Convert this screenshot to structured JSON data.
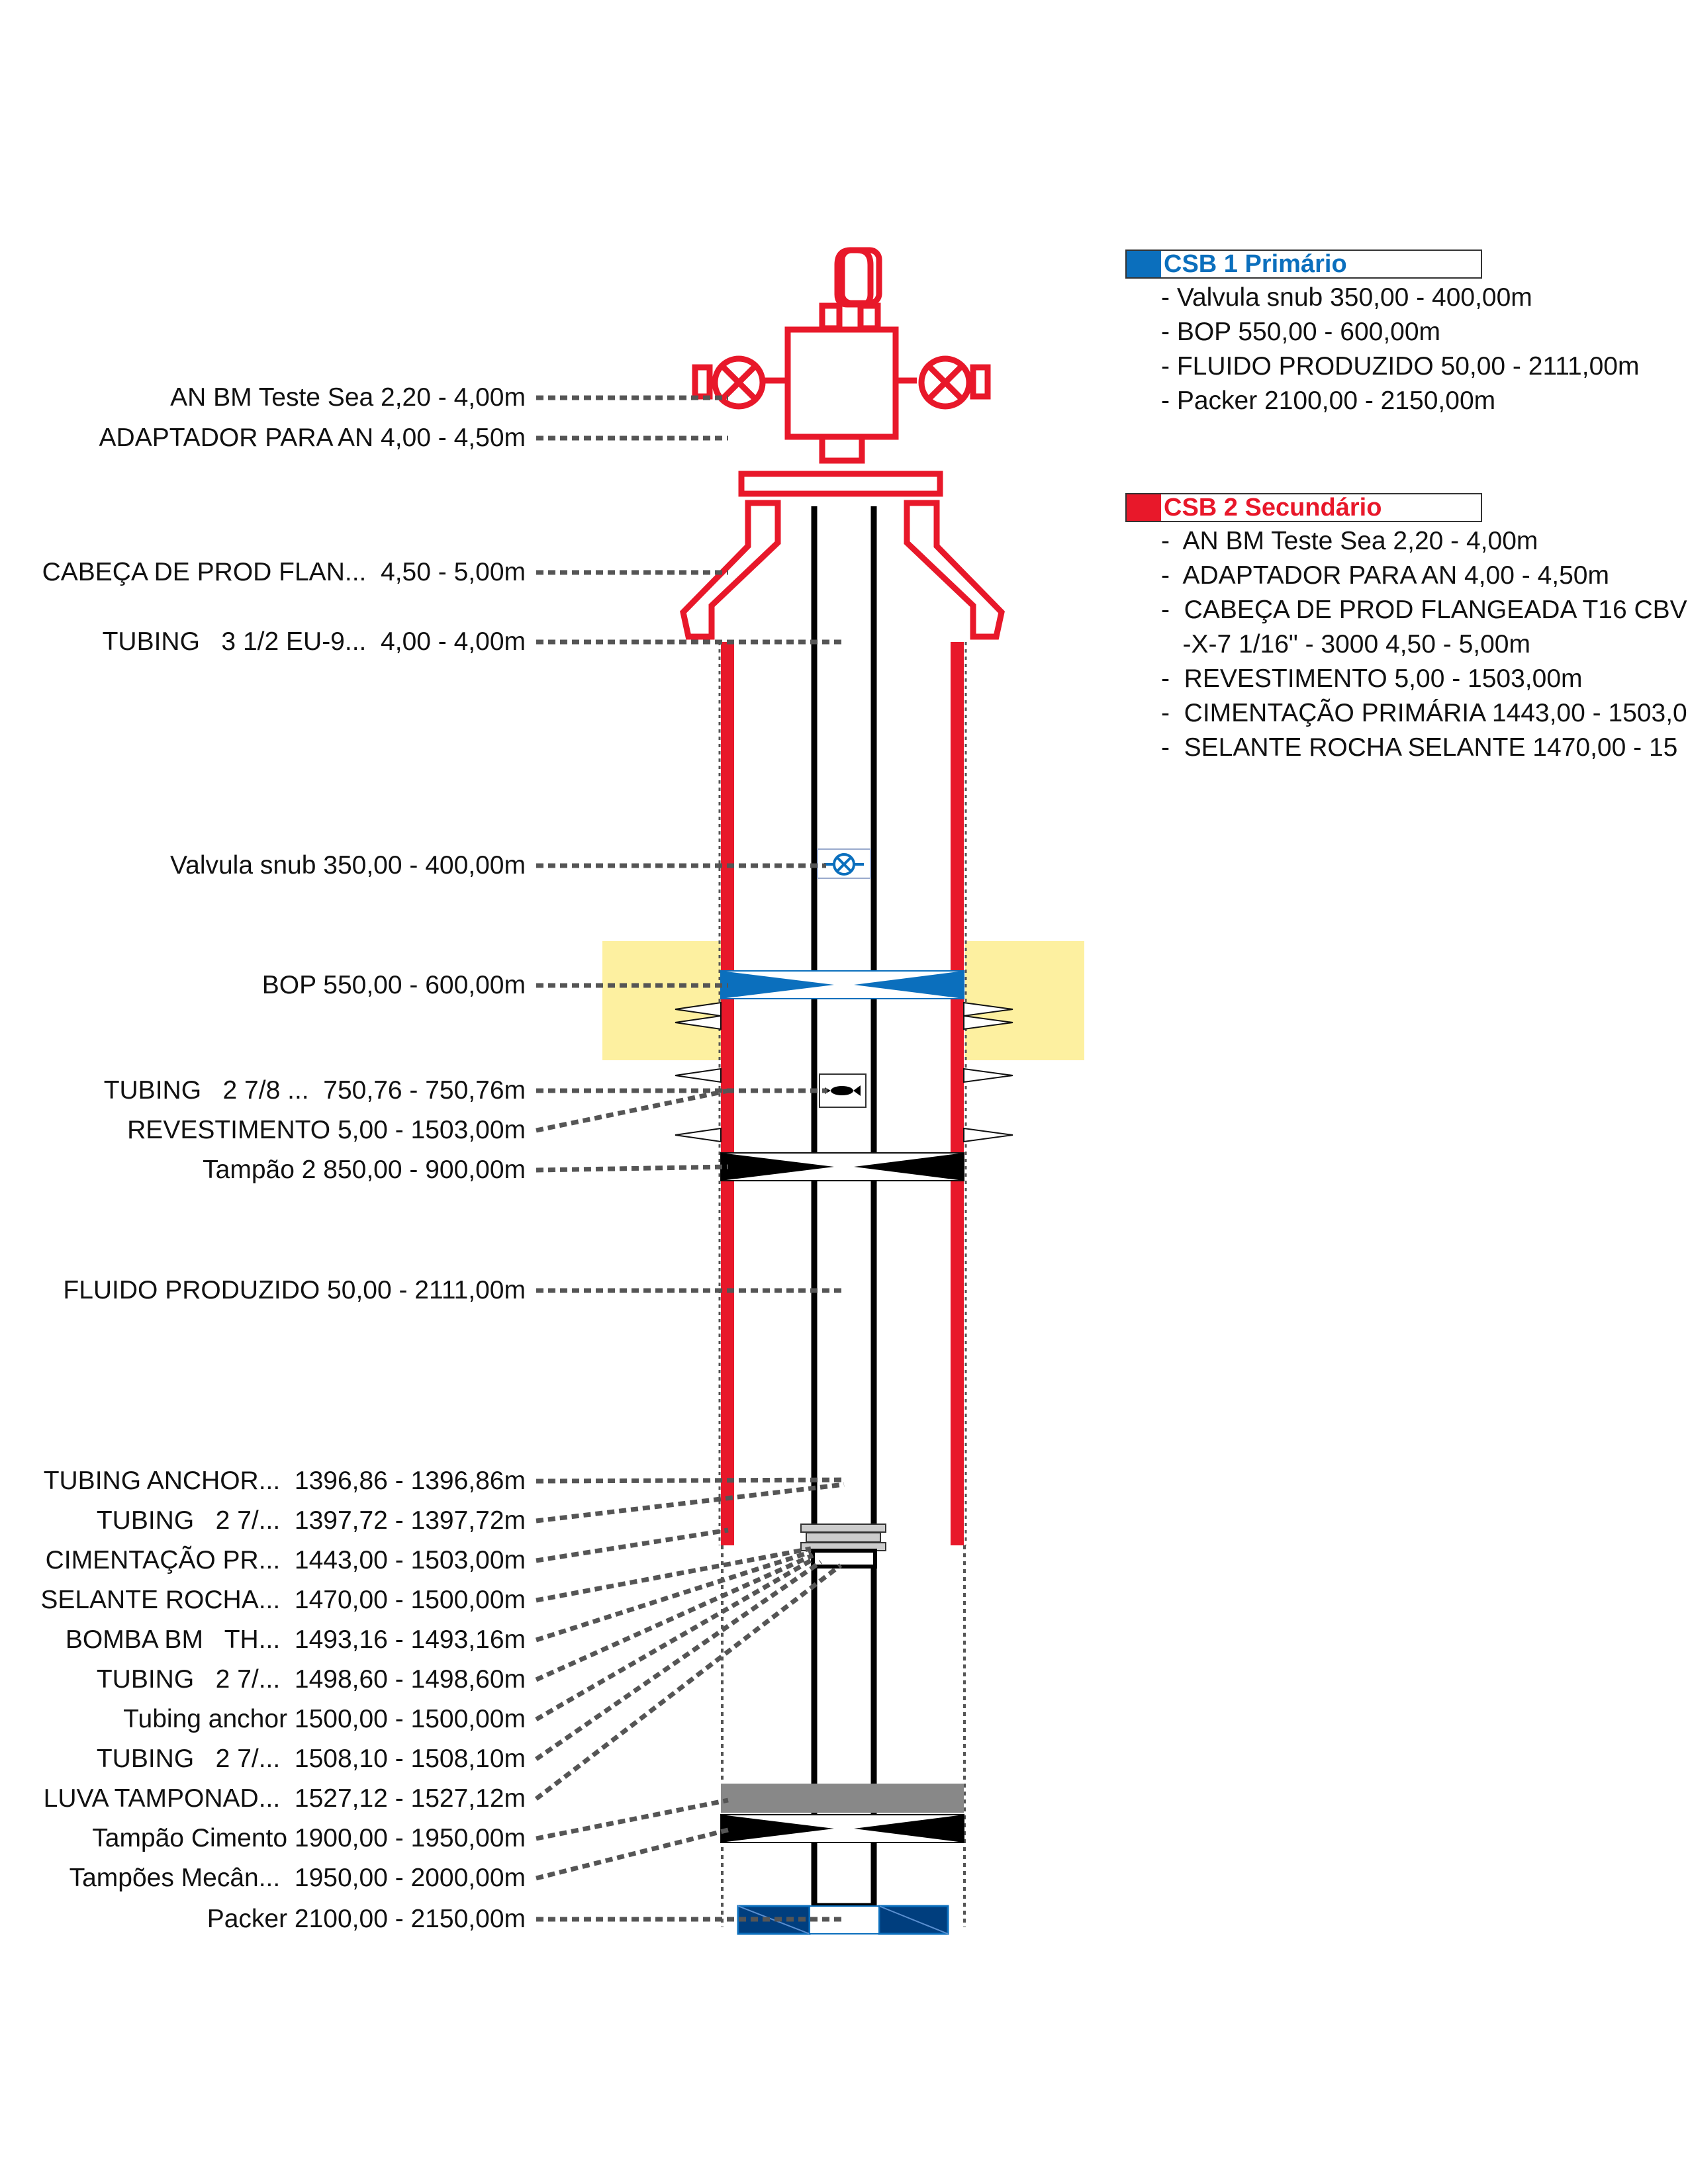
{
  "labels": [
    "AN BM Teste Sea 2,20 - 4,00m",
    "ADAPTADOR PARA AN 4,00 - 4,50m",
    "CABEÇA DE PROD FLAN...  4,50 - 5,00m",
    "TUBING   3 1/2 EU-9...  4,00 - 4,00m",
    "Valvula snub 350,00 - 400,00m",
    "BOP 550,00 - 600,00m",
    "TUBING   2 7/8 ...  750,76 - 750,76m",
    "REVESTIMENTO 5,00 - 1503,00m",
    "Tampão 2 850,00 - 900,00m",
    "FLUIDO PRODUZIDO 50,00 - 2111,00m",
    "TUBING ANCHOR...  1396,86 - 1396,86m",
    "TUBING   2 7/...  1397,72 - 1397,72m",
    "CIMENTAÇÃO PR...  1443,00 - 1503,00m",
    "SELANTE ROCHA...  1470,00 - 1500,00m",
    "BOMBA BM   TH...  1493,16 - 1493,16m",
    "TUBING   2 7/...  1498,60 - 1498,60m",
    "Tubing anchor 1500,00 - 1500,00m",
    "TUBING   2 7/...  1508,10 - 1508,10m",
    "LUVA TAMPONAD...  1527,12 - 1527,12m",
    "Tampão Cimento 1900,00 - 1950,00m",
    "Tampões Mecân...  1950,00 - 2000,00m",
    "Packer 2100,00 - 2150,00m"
  ],
  "legend": {
    "csb1": {
      "title": "CSB 1 Primário",
      "color": "#0b6fbd",
      "items": [
        "- Valvula snub 350,00 - 400,00m",
        "- BOP 550,00 - 600,00m",
        "- FLUIDO PRODUZIDO 50,00 - 2111,00m",
        "- Packer 2100,00 - 2150,00m"
      ]
    },
    "csb2": {
      "title": "CSB 2 Secundário",
      "color": "#e8182a",
      "items": [
        "-  AN BM Teste Sea 2,20 - 4,00m",
        "-  ADAPTADOR PARA AN 4,00 - 4,50m",
        "-  CABEÇA DE PROD FLANGEADA T16 CBV",
        "   -X-7 1/16\" - 3000 4,50 - 5,00m",
        "-  REVESTIMENTO 5,00 - 1503,00m",
        "-  CIMENTAÇÃO PRIMÁRIA 1443,00 - 1503,0",
        "-  SELANTE ROCHA SELANTE 1470,00 - 15"
      ]
    }
  },
  "colors": {
    "barrier_primary": "#0b6fbd",
    "barrier_secondary": "#e8182a",
    "highlight_zone": "#fdf0a0",
    "tubing": "#000000",
    "leader": "#555555"
  }
}
